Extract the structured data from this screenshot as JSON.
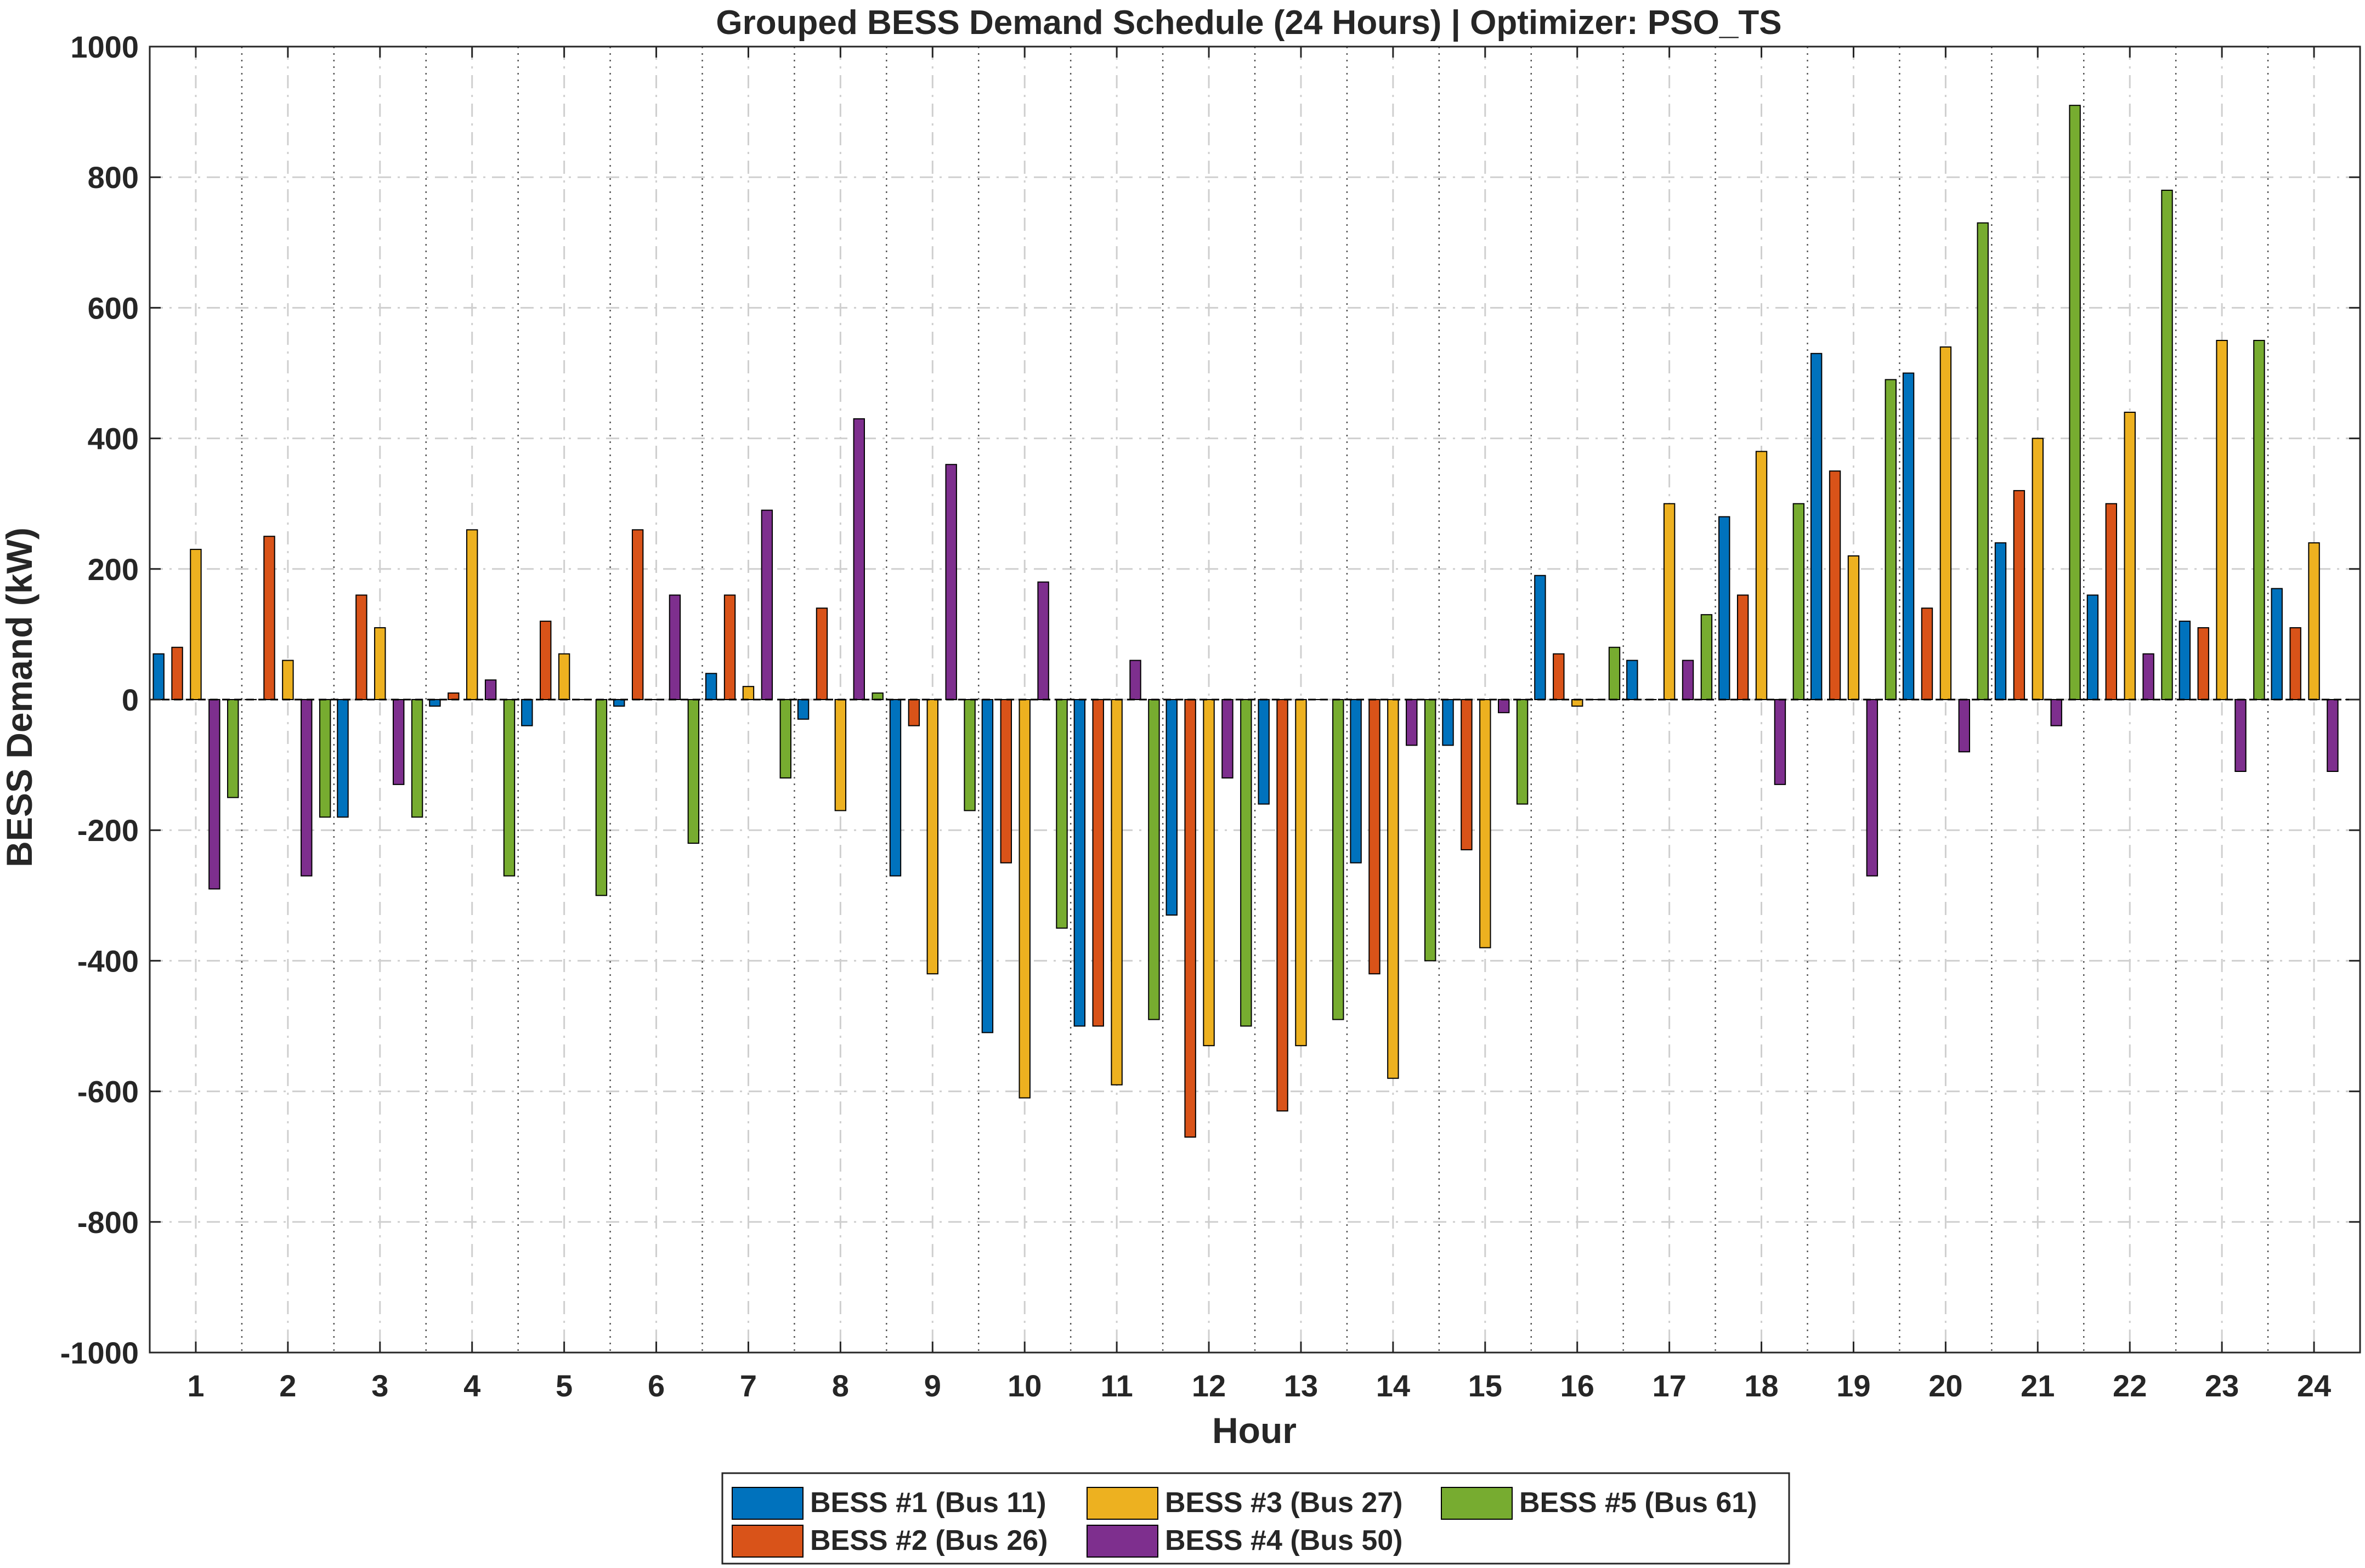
{
  "chart_data": {
    "type": "bar",
    "title": "Grouped BESS Demand Schedule (24 Hours) | Optimizer: PSO_TS",
    "xlabel": "Hour",
    "ylabel": "BESS Demand (kW)",
    "ylim": [
      -1000,
      1000
    ],
    "yticks": [
      -1000,
      -800,
      -600,
      -400,
      -200,
      0,
      200,
      400,
      600,
      800,
      1000
    ],
    "categories": [
      "1",
      "2",
      "3",
      "4",
      "5",
      "6",
      "7",
      "8",
      "9",
      "10",
      "11",
      "12",
      "13",
      "14",
      "15",
      "16",
      "17",
      "18",
      "19",
      "20",
      "21",
      "22",
      "23",
      "24"
    ],
    "grid": true,
    "legend_position": "bottom-outside",
    "series": [
      {
        "name": "BESS #1 (Bus 11)",
        "color": "#0072BD",
        "values": [
          70,
          0,
          -180,
          -10,
          -40,
          -10,
          40,
          -30,
          -270,
          -510,
          -500,
          -330,
          -160,
          -250,
          -70,
          190,
          60,
          280,
          530,
          500,
          240,
          160,
          120,
          170
        ]
      },
      {
        "name": "BESS #2 (Bus 26)",
        "color": "#D95319",
        "values": [
          80,
          250,
          160,
          10,
          120,
          260,
          160,
          140,
          -40,
          -250,
          -500,
          -670,
          -630,
          -420,
          -230,
          70,
          0,
          160,
          350,
          140,
          320,
          300,
          110,
          110
        ]
      },
      {
        "name": "BESS #3 (Bus 27)",
        "color": "#EDB120",
        "values": [
          230,
          60,
          110,
          260,
          70,
          0,
          20,
          -170,
          -420,
          -610,
          -590,
          -530,
          -530,
          -580,
          -380,
          -10,
          300,
          380,
          220,
          540,
          400,
          440,
          550,
          240
        ]
      },
      {
        "name": "BESS #4 (Bus 50)",
        "color": "#7E2F8E",
        "values": [
          -290,
          -270,
          -130,
          30,
          0,
          160,
          290,
          430,
          360,
          180,
          60,
          -120,
          0,
          -70,
          -20,
          0,
          60,
          -130,
          -270,
          -80,
          -40,
          70,
          -110,
          -110
        ]
      },
      {
        "name": "BESS #5 (Bus 61)",
        "color": "#77AC30",
        "values": [
          -150,
          -180,
          -180,
          -270,
          -300,
          -220,
          -120,
          10,
          -170,
          -350,
          -490,
          -500,
          -490,
          -400,
          -160,
          80,
          130,
          300,
          490,
          730,
          910,
          780,
          550,
          0
        ]
      }
    ]
  }
}
